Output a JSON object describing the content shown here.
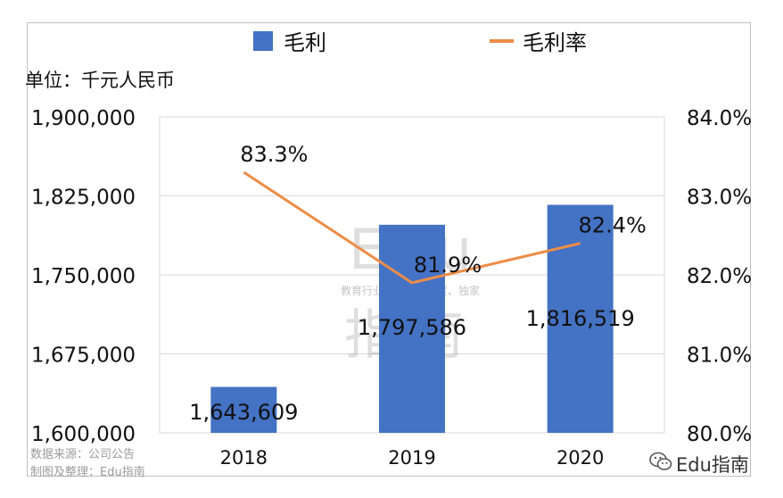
{
  "chart_data": {
    "type": "bar",
    "categories": [
      "2018",
      "2019",
      "2020"
    ],
    "series": [
      {
        "name": "毛利",
        "type": "bar",
        "axis": "left",
        "values": [
          1643609,
          1797586,
          1816519
        ],
        "labels": [
          "1,643,609",
          "1,797,586",
          "1,816,519"
        ],
        "color": "#4472C4"
      },
      {
        "name": "毛利率",
        "type": "line",
        "axis": "right",
        "values": [
          83.3,
          81.9,
          82.4
        ],
        "labels": [
          "83.3%",
          "81.9%",
          "82.4%"
        ],
        "color": "#ED8C47"
      }
    ],
    "unit_label": "单位：千元人民币",
    "y_left": {
      "min": 1600000,
      "max": 1900000,
      "ticks": [
        "1,600,000",
        "1,675,000",
        "1,750,000",
        "1,825,000",
        "1,900,000"
      ]
    },
    "y_right": {
      "min": 80.0,
      "max": 84.0,
      "ticks": [
        "80.0%",
        "81.0%",
        "82.0%",
        "83.0%",
        "84.0%"
      ]
    },
    "legend_position": "top-center",
    "grid": true
  },
  "source_lines": [
    "数据来源：公司公告",
    "制图及整理：Edu指南"
  ],
  "watermark": {
    "main": "Edu",
    "sub": "教育行业，前沿、深度、独家",
    "cn": "指南",
    "corner": "Edu指南"
  },
  "colors": {
    "bar": "#4472C4",
    "line": "#ED8C47",
    "grid": "#d9d9d9"
  }
}
